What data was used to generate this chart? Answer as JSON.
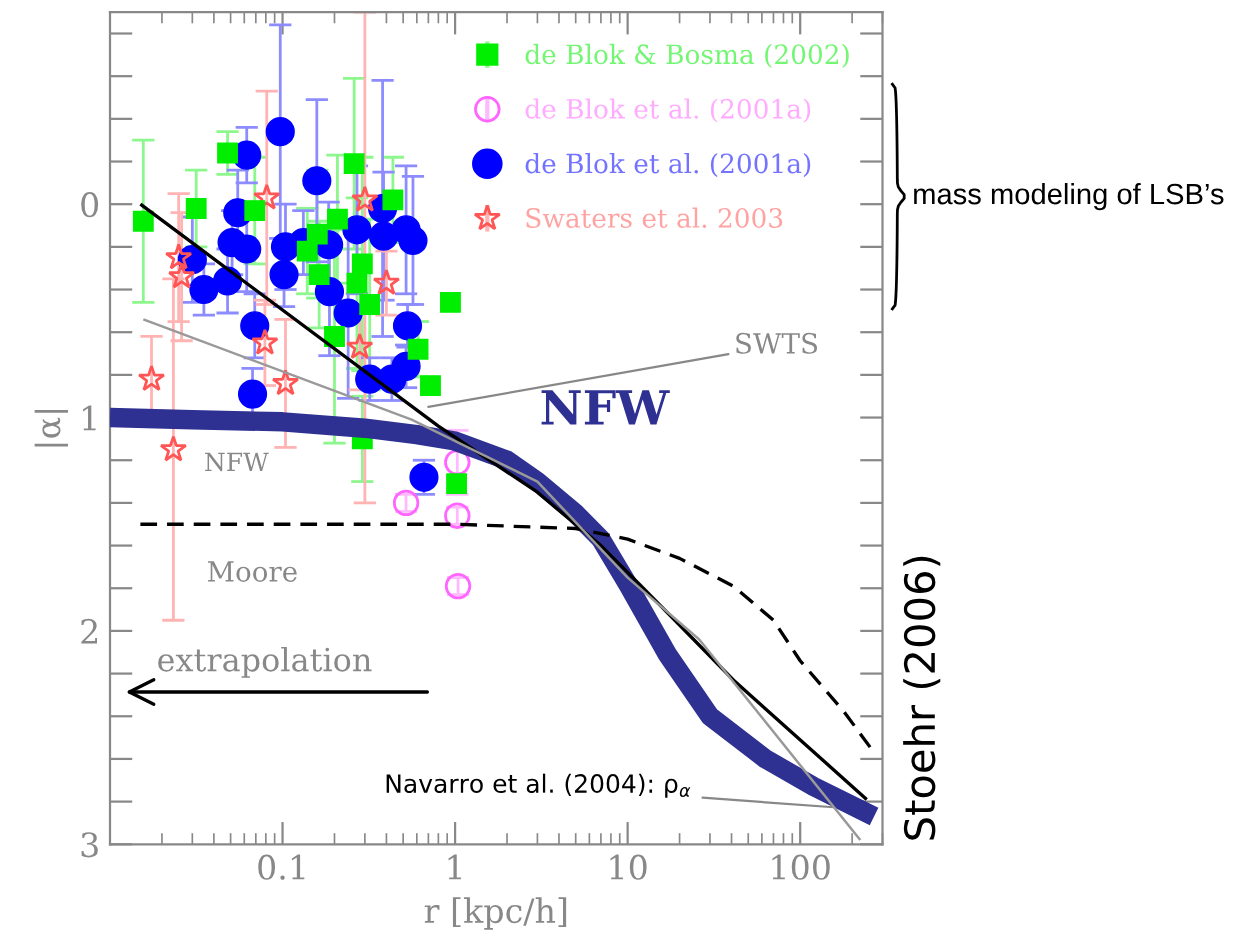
{
  "chart_data": {
    "type": "scatter",
    "xlabel": "r [kpc/h]",
    "ylabel": "|α|",
    "log": "x",
    "xlim": [
      0.01,
      300
    ],
    "xticks": [
      0.1,
      1,
      10,
      100
    ],
    "ylim": [
      3,
      -0.9
    ],
    "yticks": [
      {
        "value": -0.8,
        "label": null
      },
      {
        "value": -0.6,
        "label": null
      },
      {
        "value": -0.4,
        "label": null
      },
      {
        "value": -0.2,
        "label": null
      },
      0,
      {
        "value": 0.2,
        "label": null
      },
      {
        "value": 0.4,
        "label": null
      },
      {
        "value": 0.6,
        "label": null
      },
      {
        "value": 0.8,
        "label": null
      },
      1,
      {
        "value": 1.2,
        "label": null
      },
      {
        "value": 1.4,
        "label": null
      },
      {
        "value": 1.6,
        "label": null
      },
      {
        "value": 1.8,
        "label": null
      },
      2,
      {
        "value": 2.2,
        "label": null
      },
      {
        "value": 2.4,
        "label": null
      },
      {
        "value": 2.6,
        "label": null
      },
      {
        "value": 2.8,
        "label": null
      },
      3
    ],
    "grid": false,
    "legend": "top right",
    "series": [
      {
        "name": "de Blok & Bosma (2002)",
        "marker": "square",
        "color": "#00ee00",
        "x": [
          0.0156,
          0.0316,
          0.048,
          0.069,
          0.26,
          0.436,
          0.159,
          0.208,
          0.139,
          0.163,
          0.27,
          0.29,
          0.32,
          0.2,
          0.94,
          0.61,
          0.72,
          0.29,
          1.02
        ],
        "values": [
          0.08,
          0.02,
          -0.24,
          0.03,
          -0.19,
          -0.02,
          0.14,
          0.07,
          0.22,
          0.33,
          0.37,
          0.28,
          0.47,
          0.62,
          0.46,
          0.68,
          0.85,
          1.1,
          1.31
        ],
        "errors": [
          0.38,
          0.18,
          0.1,
          0.25,
          0.4,
          0.2,
          0.3,
          0.3,
          0.2,
          0.25,
          0.4,
          0.5,
          0.4,
          0.5,
          null,
          0.13,
          null,
          0.2,
          null
        ]
      },
      {
        "name": "de Blok et al. (2001a)",
        "marker": "circle",
        "color": "#ff66ff",
        "x": [
          0.52,
          1.03,
          1.03,
          1.04
        ],
        "values": [
          1.4,
          1.21,
          1.46,
          1.79
        ],
        "errors": [
          0.04,
          0.15,
          0.04,
          0.04
        ]
      },
      {
        "name": "de Blok et al. (2001a)",
        "marker": "circle",
        "color": "#0000ff",
        "x": [
          0.03,
          0.035,
          0.048,
          0.062,
          0.055,
          0.051,
          0.062,
          0.069,
          0.067,
          0.097,
          0.104,
          0.102,
          0.132,
          0.158,
          0.185,
          0.187,
          0.24,
          0.27,
          0.38,
          0.385,
          0.52,
          0.57,
          0.53,
          0.52,
          0.43,
          0.32,
          0.66
        ],
        "values": [
          0.26,
          0.4,
          0.36,
          -0.23,
          0.04,
          0.18,
          0.21,
          0.57,
          0.89,
          -0.34,
          0.2,
          0.33,
          0.18,
          -0.11,
          0.19,
          0.41,
          0.51,
          0.12,
          0.02,
          0.15,
          0.12,
          0.17,
          0.57,
          0.76,
          0.82,
          0.82,
          1.28
        ],
        "errors": [
          0.2,
          0.12,
          0.15,
          0.13,
          0.2,
          0.15,
          0.2,
          0.15,
          0.12,
          0.5,
          0.2,
          0.15,
          0.15,
          0.38,
          0.2,
          0.3,
          0.4,
          0.3,
          0.6,
          0.3,
          0.3,
          0.3,
          0.1,
          0.1,
          0.1,
          0.1,
          0.08
        ]
      },
      {
        "name": "Swaters et al. 2003",
        "marker": "star",
        "color": "#ff5555",
        "x": [
          0.0174,
          0.0233,
          0.025,
          0.026,
          0.081,
          0.079,
          0.104,
          0.3,
          0.28,
          0.4
        ],
        "values": [
          0.82,
          1.15,
          0.25,
          0.34,
          -0.03,
          0.65,
          0.84,
          -0.02,
          0.67,
          0.37
        ],
        "errors": [
          0.2,
          0.8,
          0.3,
          0.3,
          0.5,
          0.2,
          0.3,
          [
            -0.9,
            1.4
          ],
          0.2,
          0.15
        ]
      },
      {
        "type": "line",
        "line_style": "solid",
        "color": "#2e3192",
        "x": [
          0.01,
          0.03,
          0.1,
          0.3,
          0.6,
          1,
          2,
          3,
          5,
          7,
          10,
          17,
          30,
          63,
          120,
          268
        ],
        "values": [
          1.0,
          1.01,
          1.02,
          1.05,
          1.08,
          1.11,
          1.2,
          1.3,
          1.45,
          1.57,
          1.78,
          2.11,
          2.4,
          2.6,
          2.73,
          2.87
        ]
      },
      {
        "type": "line",
        "line_style": "dashed",
        "color": "#000000",
        "x": [
          0.015,
          1,
          5,
          10,
          20,
          41,
          70,
          100,
          180,
          268
        ],
        "values": [
          1.5,
          1.5,
          1.52,
          1.57,
          1.66,
          1.79,
          1.95,
          2.14,
          2.38,
          2.57
        ]
      },
      {
        "type": "line",
        "line_style": "solid",
        "color": "#000000",
        "x": [
          0.015,
          0.8,
          3,
          7,
          12,
          41,
          243
        ],
        "values": [
          0.0,
          1.04,
          1.35,
          1.6,
          1.79,
          2.23,
          2.79
        ]
      },
      {
        "type": "line",
        "line_style": "solid",
        "color": "#999999",
        "x": [
          0.0156,
          0.56,
          3,
          10,
          26,
          223
        ],
        "values": [
          0.54,
          1.01,
          1.3,
          1.75,
          2.04,
          2.98
        ]
      }
    ],
    "annotations": [
      "NFW",
      {
        "text": "NFW",
        "x": 0.035,
        "y": 1.07
      },
      "Moore",
      {
        "text": "SWTS",
        "x": 0.7,
        "y": 0.95
      },
      "extrapolation",
      {
        "text": "Navarro et al. (2004): ρ$_{α}$",
        "x": 180,
        "y": 2.83
      },
      "mass modeling of LSB’s",
      "Stoehr (2006)"
    ]
  }
}
